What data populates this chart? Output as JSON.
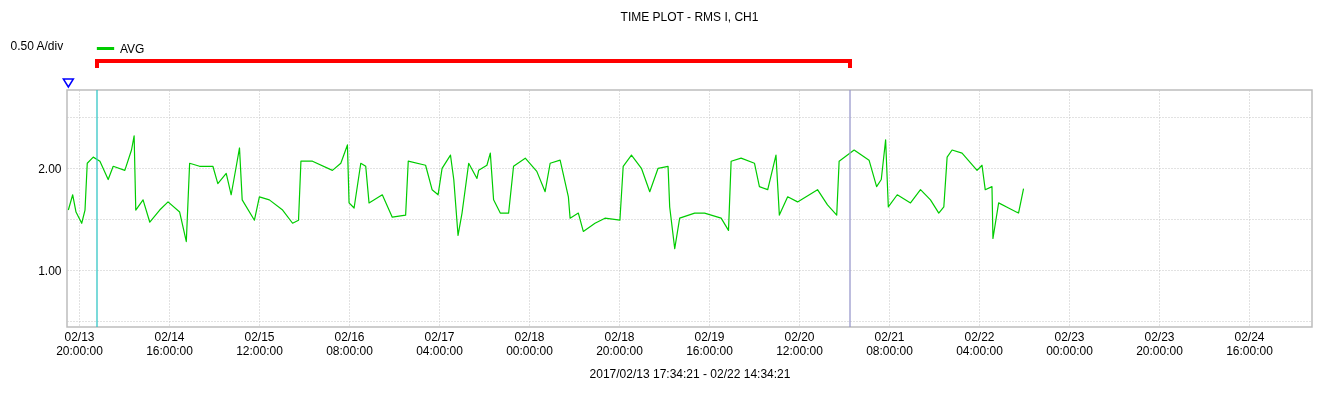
{
  "chart_data": {
    "type": "line",
    "title": "TIME PLOT - RMS  I, CH1",
    "xlabel": "2017/02/13 17:34:21 - 02/22 14:34:21",
    "ylabel": "0.50 A/div",
    "xlim": [
      "2017-02-13T17:20",
      "2017-02-25T06:00"
    ],
    "xticks": [
      {
        "value": "2017-02-13T20:00",
        "label": "02/13\n20:00:00"
      },
      {
        "value": "2017-02-14T16:00",
        "label": "02/14\n16:00:00"
      },
      {
        "value": "2017-02-15T12:00",
        "label": "02/15\n12:00:00"
      },
      {
        "value": "2017-02-16T08:00",
        "label": "02/16\n08:00:00"
      },
      {
        "value": "2017-02-17T04:00",
        "label": "02/17\n04:00:00"
      },
      {
        "value": "2017-02-18T00:00",
        "label": "02/18\n00:00:00"
      },
      {
        "value": "2017-02-18T20:00",
        "label": "02/18\n20:00:00"
      },
      {
        "value": "2017-02-19T16:00",
        "label": "02/19\n16:00:00"
      },
      {
        "value": "2017-02-20T12:00",
        "label": "02/20\n12:00:00"
      },
      {
        "value": "2017-02-21T08:00",
        "label": "02/21\n08:00:00"
      },
      {
        "value": "2017-02-22T04:00",
        "label": "02/22\n04:00:00"
      },
      {
        "value": "2017-02-23T00:00",
        "label": "02/23\n00:00:00"
      },
      {
        "value": "2017-02-23T20:00",
        "label": "02/23\n20:00:00"
      },
      {
        "value": "2017-02-24T16:00",
        "label": "02/24\n16:00:00"
      }
    ],
    "ylim": [
      0.44,
      2.77
    ],
    "yticks": [
      {
        "value": 0.5,
        "label": null
      },
      {
        "value": 1,
        "label": "1.00"
      },
      {
        "value": 1.5,
        "label": null
      },
      {
        "value": 2,
        "label": "2.00"
      },
      {
        "value": 2.5,
        "label": null
      }
    ],
    "grid": true,
    "legend": "top left",
    "marker": "none",
    "line_style": "solid",
    "ref_lines": [
      {
        "axis": "x",
        "value": "2017-02-14T00:00",
        "label": null,
        "color": "#33c6c6"
      },
      {
        "axis": "x",
        "value": "2017-02-20T23:20",
        "label": null,
        "color": "#9a9acc"
      }
    ],
    "series": [
      {
        "name": "AVG",
        "color": "#00cc00",
        "x": [
          "2017-02-13T17:38",
          "2017-02-13T18:36",
          "2017-02-13T19:20",
          "2017-02-13T20:36",
          "2017-02-13T21:20",
          "2017-02-13T21:50",
          "2017-02-13T23:10",
          "2017-02-14T00:39",
          "2017-02-14T02:29",
          "2017-02-14T03:36",
          "2017-02-14T06:11",
          "2017-02-14T07:40",
          "2017-02-14T08:15",
          "2017-02-14T08:37",
          "2017-02-14T10:14",
          "2017-02-14T11:44",
          "2017-02-14T13:56",
          "2017-02-14T15:47",
          "2017-02-14T18:22",
          "2017-02-14T19:51",
          "2017-02-14T20:35",
          "2017-02-14T22:48",
          "2017-02-15T01:45",
          "2017-02-15T02:51",
          "2017-02-15T04:43",
          "2017-02-15T05:49",
          "2017-02-15T07:04",
          "2017-02-15T07:40",
          "2017-02-15T08:16",
          "2017-02-15T10:59",
          "2017-02-15T12:05",
          "2017-02-15T14:18",
          "2017-02-15T17:15",
          "2017-02-15T19:28",
          "2017-02-15T20:47",
          "2017-02-15T21:19",
          "2017-02-15T23:53",
          "2017-02-16T04:19",
          "2017-02-16T06:11",
          "2017-02-16T07:39",
          "2017-02-16T08:01",
          "2017-02-16T09:08",
          "2017-02-16T10:37",
          "2017-02-16T11:43",
          "2017-02-16T12:27",
          "2017-02-16T15:24",
          "2017-02-16T17:37",
          "2017-02-16T20:35",
          "2017-02-16T21:10",
          "2017-02-17T01:01",
          "2017-02-17T02:28",
          "2017-02-17T03:48",
          "2017-02-17T04:41",
          "2017-02-17T06:33",
          "2017-02-17T07:17",
          "2017-02-17T08:14",
          "2017-02-17T09:07",
          "2017-02-17T10:36",
          "2017-02-17T12:26",
          "2017-02-17T12:49",
          "2017-02-17T14:39",
          "2017-02-17T15:24",
          "2017-02-17T16:08",
          "2017-02-17T17:37",
          "2017-02-17T19:28",
          "2017-02-17T20:34",
          "2017-02-17T23:10",
          "2017-02-18T01:44",
          "2017-02-18T03:35",
          "2017-02-18T04:42",
          "2017-02-18T06:55",
          "2017-02-18T08:45",
          "2017-02-18T09:08",
          "2017-02-18T10:58",
          "2017-02-18T12:04",
          "2017-02-18T14:40",
          "2017-02-18T16:53",
          "2017-02-18T20:12",
          "2017-02-18T20:56",
          "2017-02-18T22:46",
          "2017-02-19T00:59",
          "2017-02-19T02:50",
          "2017-02-19T04:41",
          "2017-02-19T06:54",
          "2017-02-19T07:16",
          "2017-02-19T08:23",
          "2017-02-19T09:29",
          "2017-02-19T12:49",
          "2017-02-19T15:01",
          "2017-02-19T18:42",
          "2017-02-19T20:20",
          "2017-02-19T20:55",
          "2017-02-19T23:08",
          "2017-02-20T02:06",
          "2017-02-20T03:12",
          "2017-02-20T05:03",
          "2017-02-20T06:53",
          "2017-02-20T07:38",
          "2017-02-20T09:29",
          "2017-02-20T11:41",
          "2017-02-20T16:07",
          "2017-02-20T18:20",
          "2017-02-20T20:23",
          "2017-02-20T20:55",
          "2017-02-21T00:15",
          "2017-02-21T03:34",
          "2017-02-21T05:15",
          "2017-02-21T06:17",
          "2017-02-21T07:15",
          "2017-02-21T07:51",
          "2017-02-21T09:50",
          "2017-02-21T12:47",
          "2017-02-21T15:00",
          "2017-02-21T17:13",
          "2017-02-21T19:04",
          "2017-02-21T20:11",
          "2017-02-21T20:55",
          "2017-02-21T22:01",
          "2017-02-22T00:14",
          "2017-02-22T03:34",
          "2017-02-22T04:40",
          "2017-02-22T05:23",
          "2017-02-22T06:53",
          "2017-02-22T07:06",
          "2017-02-22T08:22",
          "2017-02-22T10:34",
          "2017-02-22T12:47",
          "2017-02-22T13:54"
        ],
        "values": [
          1.59,
          1.74,
          1.57,
          1.46,
          1.59,
          2.05,
          2.11,
          2.07,
          1.89,
          2.02,
          1.98,
          2.18,
          2.32,
          1.59,
          1.69,
          1.47,
          1.59,
          1.67,
          1.57,
          1.28,
          2.05,
          2.02,
          2.02,
          1.85,
          1.95,
          1.74,
          2.05,
          2.2,
          1.69,
          1.49,
          1.72,
          1.69,
          1.59,
          1.46,
          1.49,
          2.07,
          2.07,
          1.98,
          2.05,
          2.23,
          1.66,
          1.61,
          2.05,
          2.02,
          1.66,
          1.74,
          1.52,
          1.54,
          2.07,
          2.03,
          1.79,
          1.74,
          2.0,
          2.13,
          1.89,
          1.34,
          1.56,
          2.05,
          1.9,
          1.98,
          2.03,
          2.15,
          1.69,
          1.56,
          1.56,
          2.02,
          2.1,
          1.97,
          1.77,
          2.05,
          2.08,
          1.72,
          1.51,
          1.56,
          1.38,
          1.46,
          1.51,
          1.49,
          2.02,
          2.13,
          2.0,
          1.77,
          2.0,
          2.02,
          1.62,
          1.21,
          1.51,
          1.56,
          1.56,
          1.51,
          1.39,
          2.07,
          2.1,
          2.05,
          1.82,
          1.79,
          2.13,
          1.54,
          1.72,
          1.67,
          1.79,
          1.64,
          1.54,
          2.07,
          2.18,
          2.08,
          1.82,
          1.89,
          2.28,
          1.62,
          1.74,
          1.66,
          1.79,
          1.69,
          1.56,
          1.62,
          2.11,
          2.18,
          2.15,
          1.98,
          2.03,
          1.79,
          1.82,
          1.31,
          1.66,
          1.61,
          1.56,
          1.8
        ]
      }
    ]
  }
}
